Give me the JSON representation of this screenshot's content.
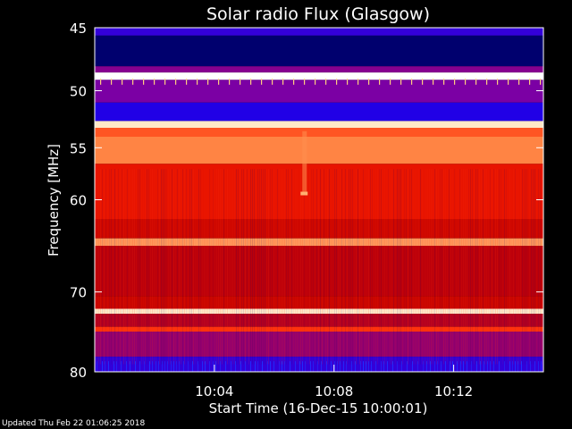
{
  "chart_data": {
    "type": "heatmap",
    "title": "Solar radio Flux (Glasgow)",
    "xlabel": "Start Time (16-Dec-15 10:00:01)",
    "ylabel": "Frequency [MHz]",
    "x_ticks": [
      "10:04",
      "10:08",
      "10:12"
    ],
    "x_tick_minutes": [
      4,
      8,
      12
    ],
    "xlim_minutes": [
      0,
      15
    ],
    "y_ticks": [
      45,
      50,
      55,
      60,
      70,
      80
    ],
    "ylim": [
      45,
      80
    ],
    "y_scale": "log",
    "colormap": [
      "#000020",
      "#0000ff",
      "#8000a0",
      "#c00000",
      "#ff2000",
      "#ff8040",
      "#ffe0b0",
      "#ffffff"
    ],
    "bands": [
      {
        "f_start": 45.0,
        "f_end": 45.6,
        "level": 0.2
      },
      {
        "f_start": 45.6,
        "f_end": 48.0,
        "level": 0.05
      },
      {
        "f_start": 48.0,
        "f_end": 48.5,
        "level": 0.3
      },
      {
        "f_start": 48.5,
        "f_end": 49.1,
        "level": 1.0
      },
      {
        "f_start": 49.1,
        "f_end": 51.0,
        "level": 0.28
      },
      {
        "f_start": 51.0,
        "f_end": 52.6,
        "level": 0.18
      },
      {
        "f_start": 52.6,
        "f_end": 53.2,
        "level": 0.9
      },
      {
        "f_start": 53.2,
        "f_end": 54.0,
        "level": 0.65
      },
      {
        "f_start": 54.0,
        "f_end": 56.5,
        "level": 0.72
      },
      {
        "f_start": 56.5,
        "f_end": 62.0,
        "level": 0.52
      },
      {
        "f_start": 62.0,
        "f_end": 64.0,
        "level": 0.46
      },
      {
        "f_start": 64.0,
        "f_end": 64.8,
        "level": 0.75
      },
      {
        "f_start": 64.8,
        "f_end": 70.5,
        "level": 0.42
      },
      {
        "f_start": 70.5,
        "f_end": 72.0,
        "level": 0.45
      },
      {
        "f_start": 72.0,
        "f_end": 72.6,
        "level": 0.9
      },
      {
        "f_start": 72.6,
        "f_end": 74.2,
        "level": 0.4
      },
      {
        "f_start": 74.2,
        "f_end": 74.8,
        "level": 0.6
      },
      {
        "f_start": 74.8,
        "f_end": 78.0,
        "level": 0.33
      },
      {
        "f_start": 78.0,
        "f_end": 80.0,
        "level": 0.2
      }
    ]
  },
  "footer": {
    "updated": "Updated Thu Feb 22 01:06:25 2018"
  }
}
